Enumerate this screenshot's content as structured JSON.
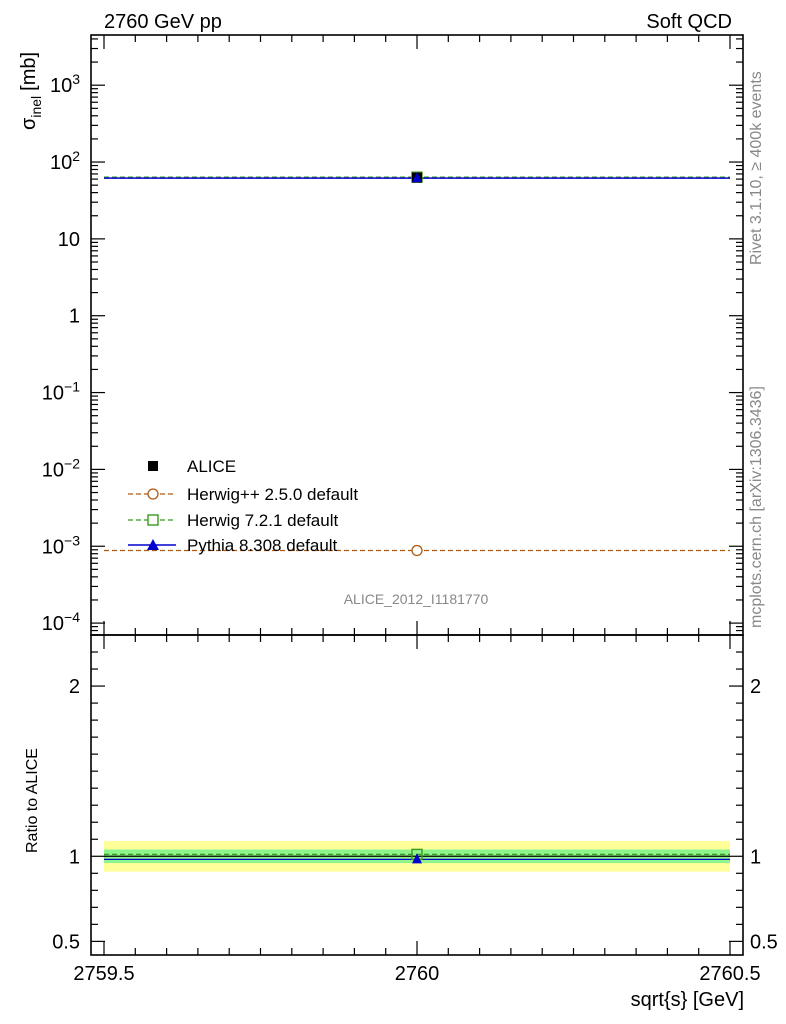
{
  "header": {
    "left": "2760 GeV pp",
    "right": "Soft QCD"
  },
  "side": {
    "rivet": "Rivet 3.1.10, ≥ 400k events",
    "mcplots": "mcplots.cern.ch [arXiv:1306.3436]"
  },
  "watermark": "ALICE_2012_I1181770",
  "colors": {
    "alice": "#000000",
    "herwigpp": "#b05a10",
    "herwig7": "#3a9a1a",
    "pythia": "#0000cc",
    "band_inner": "#8ef58e",
    "band_outer": "#ffff99"
  },
  "chart_data": [
    {
      "type": "scatter",
      "panel": "main",
      "yscale": "log",
      "xlabel": "sqrt{s} [GeV]",
      "ylabel_main": "σ",
      "ylabel_sub": "inel",
      "ylabel_unit": "[mb]",
      "xlim": [
        2759.5,
        2760.5
      ],
      "ylim": [
        7e-05,
        4500
      ],
      "ytick_labels": [
        {
          "value": 0.0001,
          "base": "10",
          "exp": "−4"
        },
        {
          "value": 0.001,
          "base": "10",
          "exp": "−3"
        },
        {
          "value": 0.01,
          "base": "10",
          "exp": "−2"
        },
        {
          "value": 0.1,
          "base": "10",
          "exp": "−1"
        },
        {
          "value": 1,
          "base": "1",
          "exp": ""
        },
        {
          "value": 10,
          "base": "10",
          "exp": ""
        },
        {
          "value": 100,
          "base": "10",
          "exp": "2"
        },
        {
          "value": 1000,
          "base": "10",
          "exp": "3"
        }
      ],
      "series": [
        {
          "key": "alice",
          "name": "ALICE",
          "x": [
            2760
          ],
          "y": [
            62.8
          ],
          "marker": "square-filled",
          "line": "none"
        },
        {
          "key": "herwigpp",
          "name": "Herwig++ 2.5.0 default",
          "x": [
            2760
          ],
          "y": [
            0.00088
          ],
          "marker": "circle-open",
          "line": "dashed"
        },
        {
          "key": "herwig7",
          "name": "Herwig 7.2.1 default",
          "x": [
            2760
          ],
          "y": [
            63.5
          ],
          "marker": "square-open",
          "line": "dashed"
        },
        {
          "key": "pythia",
          "name": "Pythia 8.308 default",
          "x": [
            2760
          ],
          "y": [
            61.7
          ],
          "marker": "triangle-filled",
          "line": "solid"
        }
      ],
      "legend_position": "lower-left"
    },
    {
      "type": "line",
      "panel": "ratio",
      "ylabel": "Ratio to ALICE",
      "xlim": [
        2759.5,
        2760.5
      ],
      "ylim": [
        0.42,
        2.3
      ],
      "ytick_labels": [
        {
          "value": 0.5,
          "label": "0.5"
        },
        {
          "value": 1,
          "label": "1"
        },
        {
          "value": 2,
          "label": "2"
        }
      ],
      "xtick_labels": [
        {
          "value": 2759.5,
          "label": "2759.5"
        },
        {
          "value": 2760,
          "label": "2760"
        },
        {
          "value": 2760.5,
          "label": "2760.5"
        }
      ],
      "bands": {
        "inner": [
          0.96,
          1.04
        ],
        "outer": [
          0.91,
          1.09
        ]
      },
      "series": [
        {
          "key": "herwig7",
          "y": 1.011
        },
        {
          "key": "pythia",
          "y": 0.982
        },
        {
          "key": "alice",
          "y": 1.0
        }
      ]
    }
  ]
}
